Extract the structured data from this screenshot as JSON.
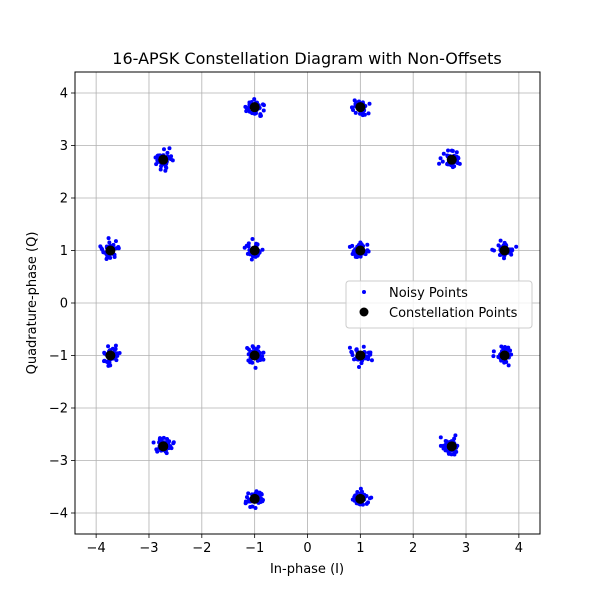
{
  "chart_data": {
    "type": "scatter",
    "title": "16-APSK Constellation Diagram with Non-Offsets",
    "xlabel": "In-phase (I)",
    "ylabel": "Quadrature-phase (Q)",
    "xlim": [
      -4.4,
      4.4
    ],
    "ylim": [
      -4.4,
      4.4
    ],
    "xticks": [
      -4,
      -3,
      -2,
      -1,
      0,
      1,
      2,
      3,
      4
    ],
    "yticks": [
      -4,
      -3,
      -2,
      -1,
      0,
      1,
      2,
      3,
      4
    ],
    "xtick_labels": [
      "−4",
      "−3",
      "−2",
      "−1",
      "0",
      "1",
      "2",
      "3",
      "4"
    ],
    "ytick_labels": [
      "−4",
      "−3",
      "−2",
      "−1",
      "0",
      "1",
      "2",
      "3",
      "4"
    ],
    "grid": true,
    "legend_position": "center-right",
    "series": [
      {
        "name": "Noisy Points",
        "color": "#0000ff",
        "marker": "small-dot",
        "noise_std": 0.08,
        "samples_per_symbol": 45
      },
      {
        "name": "Constellation Points",
        "color": "#000000",
        "marker": "large-dot",
        "points": [
          [
            1,
            1
          ],
          [
            -1,
            1
          ],
          [
            -1,
            -1
          ],
          [
            1,
            -1
          ],
          [
            3.73,
            1
          ],
          [
            2.73,
            2.73
          ],
          [
            1,
            3.73
          ],
          [
            -1,
            3.73
          ],
          [
            -2.73,
            2.73
          ],
          [
            -3.73,
            1
          ],
          [
            -3.73,
            -1
          ],
          [
            -2.73,
            -2.73
          ],
          [
            -1,
            -3.73
          ],
          [
            1,
            -3.73
          ],
          [
            2.73,
            -2.73
          ],
          [
            3.73,
            -1
          ]
        ]
      }
    ]
  }
}
